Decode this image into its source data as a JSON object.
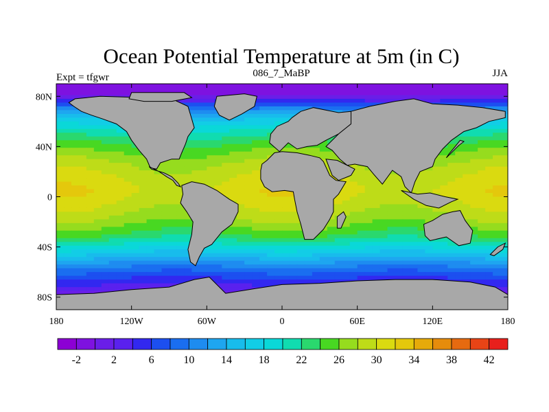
{
  "chart_data": {
    "type": "heatmap",
    "title": "Ocean Potential Temperature at 5m (in C)",
    "subtitle_left": "Expt = tfgwr",
    "subtitle_center": "086_7_MaBP",
    "subtitle_right": "JJA",
    "x_ticks": [
      {
        "value": -180,
        "label": "180"
      },
      {
        "value": -120,
        "label": "120W"
      },
      {
        "value": -60,
        "label": "60W"
      },
      {
        "value": 0,
        "label": "0"
      },
      {
        "value": 60,
        "label": "60E"
      },
      {
        "value": 120,
        "label": "120E"
      },
      {
        "value": 180,
        "label": "180"
      }
    ],
    "y_ticks": [
      {
        "value": 80,
        "label": "80N"
      },
      {
        "value": 40,
        "label": "40N"
      },
      {
        "value": 0,
        "label": "0"
      },
      {
        "value": -40,
        "label": "40S"
      },
      {
        "value": -80,
        "label": "80S"
      }
    ],
    "xlim": [
      -180,
      180
    ],
    "ylim": [
      -90,
      90
    ],
    "colorbar": {
      "levels": [
        -4,
        -2,
        0,
        2,
        4,
        6,
        8,
        10,
        12,
        14,
        16,
        18,
        20,
        22,
        24,
        26,
        28,
        30,
        32,
        34,
        36,
        38,
        40,
        42,
        44
      ],
      "colors": [
        "#8c00d4",
        "#7e12e0",
        "#6a1ee8",
        "#5a21ee",
        "#3228f0",
        "#1c4ff0",
        "#1a6ef0",
        "#1e8cf0",
        "#1ea6f0",
        "#18bcec",
        "#12cde6",
        "#0ad8d8",
        "#10dcb0",
        "#2ad86e",
        "#48d822",
        "#96dc1e",
        "#bedc18",
        "#dada10",
        "#e4c80c",
        "#e6aa0a",
        "#e68c0c",
        "#e66a10",
        "#e84416",
        "#e8201c"
      ],
      "tick_labels": [
        {
          "value": -2,
          "label": "-2"
        },
        {
          "value": 2,
          "label": "2"
        },
        {
          "value": 6,
          "label": "6"
        },
        {
          "value": 10,
          "label": "10"
        },
        {
          "value": 14,
          "label": "14"
        },
        {
          "value": 18,
          "label": "18"
        },
        {
          "value": 22,
          "label": "22"
        },
        {
          "value": 26,
          "label": "26"
        },
        {
          "value": 30,
          "label": "30"
        },
        {
          "value": 34,
          "label": "34"
        },
        {
          "value": 38,
          "label": "38"
        },
        {
          "value": 42,
          "label": "42"
        }
      ]
    },
    "land_color": "#a8a8a8",
    "temperature_by_latitude": [
      {
        "lat": 90,
        "temp": -1.5
      },
      {
        "lat": 80,
        "temp": 0
      },
      {
        "lat": 75,
        "temp": 6
      },
      {
        "lat": 65,
        "temp": 14
      },
      {
        "lat": 55,
        "temp": 19
      },
      {
        "lat": 45,
        "temp": 23
      },
      {
        "lat": 35,
        "temp": 26
      },
      {
        "lat": 25,
        "temp": 28.5
      },
      {
        "lat": 15,
        "temp": 30
      },
      {
        "lat": 5,
        "temp": 31
      },
      {
        "lat": 0,
        "temp": 30.5
      },
      {
        "lat": -10,
        "temp": 29
      },
      {
        "lat": -20,
        "temp": 27
      },
      {
        "lat": -30,
        "temp": 24
      },
      {
        "lat": -40,
        "temp": 19
      },
      {
        "lat": -50,
        "temp": 13
      },
      {
        "lat": -60,
        "temp": 8
      },
      {
        "lat": -70,
        "temp": 4
      },
      {
        "lat": -80,
        "temp": -1
      },
      {
        "lat": -90,
        "temp": -2
      }
    ],
    "land_regions": [
      {
        "name": "north-america",
        "lonlat": [
          [
            -165,
            78
          ],
          [
            -145,
            80
          ],
          [
            -110,
            79
          ],
          [
            -88,
            78
          ],
          [
            -75,
            72
          ],
          [
            -72,
            62
          ],
          [
            -70,
            55
          ],
          [
            -75,
            48
          ],
          [
            -77,
            42
          ],
          [
            -80,
            35
          ],
          [
            -82,
            30
          ],
          [
            -88,
            30
          ],
          [
            -97,
            27
          ],
          [
            -100,
            22
          ],
          [
            -105,
            23
          ],
          [
            -108,
            30
          ],
          [
            -114,
            37
          ],
          [
            -120,
            45
          ],
          [
            -124,
            52
          ],
          [
            -132,
            58
          ],
          [
            -143,
            62
          ],
          [
            -152,
            65
          ],
          [
            -160,
            68
          ],
          [
            -166,
            72
          ],
          [
            -170,
            75
          ]
        ]
      },
      {
        "name": "central-america",
        "lonlat": [
          [
            -106,
            24
          ],
          [
            -98,
            20
          ],
          [
            -92,
            16
          ],
          [
            -87,
            13
          ],
          [
            -84,
            9
          ],
          [
            -81,
            8
          ],
          [
            -83,
            11
          ],
          [
            -88,
            16
          ],
          [
            -94,
            19
          ],
          [
            -104,
            22
          ]
        ]
      },
      {
        "name": "greenland",
        "lonlat": [
          [
            -52,
            80
          ],
          [
            -30,
            82
          ],
          [
            -20,
            80
          ],
          [
            -22,
            72
          ],
          [
            -32,
            66
          ],
          [
            -42,
            61
          ],
          [
            -50,
            65
          ],
          [
            -54,
            72
          ]
        ]
      },
      {
        "name": "arctic-islands",
        "lonlat": [
          [
            -120,
            83
          ],
          [
            -78,
            83
          ],
          [
            -72,
            79
          ],
          [
            -88,
            76
          ],
          [
            -110,
            76
          ],
          [
            -122,
            78
          ]
        ]
      },
      {
        "name": "south-america",
        "lonlat": [
          [
            -80,
            9
          ],
          [
            -72,
            12
          ],
          [
            -62,
            10
          ],
          [
            -52,
            5
          ],
          [
            -42,
            -2
          ],
          [
            -35,
            -6
          ],
          [
            -35,
            -12
          ],
          [
            -40,
            -22
          ],
          [
            -48,
            -28
          ],
          [
            -56,
            -38
          ],
          [
            -62,
            -41
          ],
          [
            -66,
            -48
          ],
          [
            -69,
            -55
          ],
          [
            -73,
            -52
          ],
          [
            -75,
            -42
          ],
          [
            -72,
            -30
          ],
          [
            -71,
            -20
          ],
          [
            -76,
            -12
          ],
          [
            -81,
            -5
          ],
          [
            -79,
            2
          ]
        ]
      },
      {
        "name": "europe",
        "lonlat": [
          [
            -10,
            43
          ],
          [
            -9,
            50
          ],
          [
            -4,
            56
          ],
          [
            5,
            60
          ],
          [
            8,
            63
          ],
          [
            15,
            68
          ],
          [
            25,
            71
          ],
          [
            35,
            69
          ],
          [
            45,
            67
          ],
          [
            55,
            68
          ],
          [
            55,
            58
          ],
          [
            45,
            50
          ],
          [
            35,
            45
          ],
          [
            28,
            41
          ],
          [
            20,
            40
          ],
          [
            12,
            38
          ],
          [
            5,
            43
          ],
          [
            -2,
            36
          ]
        ]
      },
      {
        "name": "africa",
        "lonlat": [
          [
            -17,
            21
          ],
          [
            -17,
            14
          ],
          [
            -14,
            8
          ],
          [
            -8,
            4
          ],
          [
            2,
            5
          ],
          [
            9,
            4
          ],
          [
            10,
            -2
          ],
          [
            12,
            -12
          ],
          [
            15,
            -22
          ],
          [
            18,
            -34
          ],
          [
            25,
            -34
          ],
          [
            33,
            -26
          ],
          [
            38,
            -18
          ],
          [
            41,
            -12
          ],
          [
            41,
            -2
          ],
          [
            45,
            2
          ],
          [
            51,
            12
          ],
          [
            43,
            13
          ],
          [
            38,
            17
          ],
          [
            33,
            28
          ],
          [
            30,
            31
          ],
          [
            22,
            33
          ],
          [
            12,
            35
          ],
          [
            0,
            36
          ],
          [
            -6,
            35
          ],
          [
            -12,
            29
          ],
          [
            -16,
            26
          ]
        ]
      },
      {
        "name": "asia",
        "lonlat": [
          [
            55,
            68
          ],
          [
            70,
            72
          ],
          [
            90,
            76
          ],
          [
            105,
            78
          ],
          [
            120,
            74
          ],
          [
            140,
            73
          ],
          [
            160,
            71
          ],
          [
            178,
            68
          ],
          [
            178,
            63
          ],
          [
            165,
            60
          ],
          [
            155,
            55
          ],
          [
            145,
            52
          ],
          [
            135,
            45
          ],
          [
            128,
            38
          ],
          [
            122,
            30
          ],
          [
            120,
            24
          ],
          [
            110,
            20
          ],
          [
            106,
            12
          ],
          [
            103,
            3
          ],
          [
            98,
            8
          ],
          [
            95,
            16
          ],
          [
            88,
            21
          ],
          [
            80,
            10
          ],
          [
            73,
            18
          ],
          [
            68,
            24
          ],
          [
            58,
            26
          ],
          [
            52,
            25
          ],
          [
            46,
            30
          ],
          [
            40,
            37
          ],
          [
            35,
            40
          ],
          [
            45,
            50
          ],
          [
            55,
            58
          ]
        ]
      },
      {
        "name": "arabia",
        "lonlat": [
          [
            35,
            30
          ],
          [
            44,
            29
          ],
          [
            52,
            25
          ],
          [
            58,
            22
          ],
          [
            55,
            17
          ],
          [
            45,
            13
          ],
          [
            40,
            17
          ]
        ]
      },
      {
        "name": "japan",
        "lonlat": [
          [
            131,
            31
          ],
          [
            136,
            36
          ],
          [
            141,
            41
          ],
          [
            145,
            44
          ],
          [
            142,
            45
          ],
          [
            138,
            40
          ],
          [
            133,
            34
          ]
        ]
      },
      {
        "name": "indonesia",
        "lonlat": [
          [
            95,
            5
          ],
          [
            105,
            -2
          ],
          [
            115,
            -7
          ],
          [
            125,
            -9
          ],
          [
            135,
            -4
          ],
          [
            140,
            -2
          ],
          [
            130,
            0
          ],
          [
            118,
            3
          ],
          [
            108,
            2
          ]
        ]
      },
      {
        "name": "australia",
        "lonlat": [
          [
            113,
            -22
          ],
          [
            120,
            -19
          ],
          [
            128,
            -14
          ],
          [
            136,
            -12
          ],
          [
            142,
            -11
          ],
          [
            146,
            -19
          ],
          [
            152,
            -27
          ],
          [
            150,
            -37
          ],
          [
            141,
            -39
          ],
          [
            131,
            -32
          ],
          [
            118,
            -35
          ],
          [
            114,
            -31
          ]
        ]
      },
      {
        "name": "new-zealand",
        "lonlat": [
          [
            166,
            -46
          ],
          [
            172,
            -40
          ],
          [
            178,
            -37
          ],
          [
            176,
            -42
          ],
          [
            169,
            -47
          ]
        ]
      },
      {
        "name": "madagascar",
        "lonlat": [
          [
            44,
            -25
          ],
          [
            44,
            -16
          ],
          [
            49,
            -12
          ],
          [
            51,
            -16
          ],
          [
            47,
            -25
          ]
        ]
      },
      {
        "name": "antarctica",
        "lonlat": [
          [
            -180,
            -78
          ],
          [
            -150,
            -77
          ],
          [
            -120,
            -74
          ],
          [
            -90,
            -72
          ],
          [
            -70,
            -66
          ],
          [
            -58,
            -64
          ],
          [
            -45,
            -77
          ],
          [
            -20,
            -73
          ],
          [
            0,
            -70
          ],
          [
            30,
            -69
          ],
          [
            60,
            -67
          ],
          [
            90,
            -66
          ],
          [
            120,
            -66
          ],
          [
            150,
            -68
          ],
          [
            170,
            -72
          ],
          [
            180,
            -78
          ],
          [
            180,
            -90
          ],
          [
            -180,
            -90
          ]
        ]
      }
    ]
  }
}
